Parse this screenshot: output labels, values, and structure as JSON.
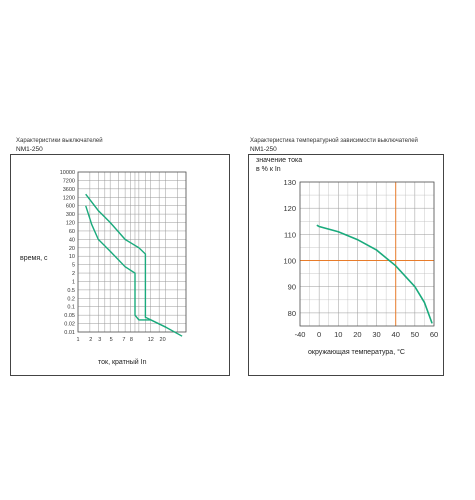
{
  "left_panel": {
    "title": "Характеристики выключателей",
    "subtitle": "NM1-250"
  },
  "right_panel": {
    "title": "Характеристика температурной зависимости выключателей",
    "subtitle": "NM1-250"
  },
  "chart_data": [
    {
      "type": "line",
      "ylabel": "время, с",
      "xlabel": "ток, кратный   In",
      "scale": "log-log",
      "y_ticks": [
        "10000",
        "7200",
        "3600",
        "1200",
        "600",
        "300",
        "120",
        "60",
        "40",
        "20",
        "10",
        "5",
        "2",
        "1",
        "0.5",
        "0.2",
        "0.1",
        "0.05",
        "0.02",
        "0.01"
      ],
      "x_ticks": [
        "1",
        "2",
        "3",
        "4",
        "5",
        "7",
        "8",
        "12",
        "20"
      ],
      "x_tick_labels": [
        "1",
        "2",
        "3",
        "5",
        "7",
        "8",
        "12",
        "20"
      ],
      "line_color": "#1aaa7c",
      "series": [
        {
          "values": [
            [
              1.3,
              1800
            ],
            [
              2,
              400
            ],
            [
              3,
              120
            ],
            [
              5,
              40
            ],
            [
              8,
              20
            ],
            [
              10,
              12
            ],
            [
              10,
              0.04
            ],
            [
              20,
              0.015
            ],
            [
              35,
              0.006
            ]
          ]
        },
        {
          "values": [
            [
              1.3,
              600
            ],
            [
              1.6,
              100
            ],
            [
              2,
              40
            ],
            [
              3,
              15
            ],
            [
              5,
              4
            ],
            [
              7,
              2
            ],
            [
              7,
              0.05
            ],
            [
              8,
              0.03
            ],
            [
              12,
              0.03
            ],
            [
              20,
              0.015
            ]
          ]
        }
      ]
    },
    {
      "type": "line",
      "ylabel": "значение тока\nв % к In",
      "xlabel": "окружающая  температура, °C",
      "x_ticks": [
        -40,
        0,
        10,
        20,
        30,
        40,
        50,
        60
      ],
      "y_ticks": [
        80,
        90,
        100,
        110,
        120,
        130
      ],
      "ylim": [
        75,
        130
      ],
      "highlight": {
        "x": 40,
        "y": 100,
        "color": "#e87c2a"
      },
      "line_color": "#1aaa7c",
      "series": [
        {
          "values": [
            [
              -5,
              113.5
            ],
            [
              0,
              113
            ],
            [
              10,
              111
            ],
            [
              20,
              108
            ],
            [
              30,
              104
            ],
            [
              40,
              98
            ],
            [
              50,
              90
            ],
            [
              55,
              84
            ],
            [
              59,
              76
            ]
          ]
        }
      ]
    }
  ]
}
